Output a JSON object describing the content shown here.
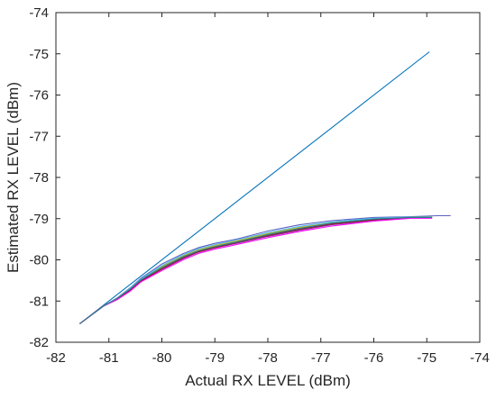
{
  "chart_data": {
    "type": "line",
    "xlabel": "Actual RX LEVEL (dBm)",
    "ylabel": "Estimated RX LEVEL (dBm)",
    "xlim": [
      -82,
      -74
    ],
    "ylim": [
      -82,
      -74
    ],
    "xticks": [
      -82,
      -81,
      -80,
      -79,
      -78,
      -77,
      -76,
      -75,
      -74
    ],
    "yticks": [
      -82,
      -81,
      -80,
      -79,
      -78,
      -77,
      -76,
      -75,
      -74
    ],
    "grid": false,
    "series": [
      {
        "color": "#0072BD",
        "x": [
          -81.55,
          -74.95
        ],
        "y": [
          -81.55,
          -74.95
        ]
      },
      {
        "color": "#5A5FC0",
        "x": [
          -81.55,
          -81.1,
          -80.85,
          -80.6,
          -80.4,
          -80.0,
          -79.6,
          -79.3,
          -79.0,
          -78.6,
          -78.0,
          -77.4,
          -76.8,
          -76.0,
          -75.3,
          -74.8,
          -74.55
        ],
        "y": [
          -81.55,
          -81.12,
          -80.93,
          -80.68,
          -80.45,
          -80.1,
          -79.85,
          -79.7,
          -79.6,
          -79.5,
          -79.3,
          -79.15,
          -79.05,
          -78.97,
          -78.95,
          -78.93,
          -78.93
        ]
      },
      {
        "color": "#D95319",
        "x": [
          -81.55,
          -81.1,
          -80.85,
          -80.6,
          -80.4,
          -80.0,
          -79.6,
          -79.3,
          -79.0,
          -78.6,
          -78.0,
          -77.4,
          -76.8,
          -76.0,
          -75.3,
          -74.9
        ],
        "y": [
          -81.55,
          -81.12,
          -80.95,
          -80.72,
          -80.5,
          -80.2,
          -79.93,
          -79.78,
          -79.68,
          -79.57,
          -79.4,
          -79.25,
          -79.12,
          -79.02,
          -78.97,
          -78.97
        ]
      },
      {
        "color": "#EDB120",
        "x": [
          -81.55,
          -81.1,
          -80.85,
          -80.6,
          -80.4,
          -80.0,
          -79.6,
          -79.3,
          -79.0,
          -78.6,
          -78.0,
          -77.4,
          -76.8,
          -76.0,
          -75.3,
          -74.9
        ],
        "y": [
          -81.55,
          -81.12,
          -80.94,
          -80.7,
          -80.48,
          -80.16,
          -79.9,
          -79.75,
          -79.65,
          -79.54,
          -79.36,
          -79.21,
          -79.09,
          -79.0,
          -78.96,
          -78.96
        ]
      },
      {
        "color": "#77AC30",
        "x": [
          -81.55,
          -81.1,
          -80.85,
          -80.6,
          -80.4,
          -80.0,
          -79.6,
          -79.3,
          -79.0,
          -78.6,
          -78.0,
          -77.4,
          -76.8,
          -76.0,
          -75.3,
          -74.9
        ],
        "y": [
          -81.55,
          -81.12,
          -80.95,
          -80.71,
          -80.49,
          -80.18,
          -79.92,
          -79.77,
          -79.67,
          -79.56,
          -79.38,
          -79.23,
          -79.11,
          -79.01,
          -78.96,
          -78.96
        ]
      },
      {
        "color": "#4DBEEE",
        "x": [
          -81.55,
          -81.1,
          -80.85,
          -80.6,
          -80.4,
          -80.0,
          -79.6,
          -79.3,
          -79.0,
          -78.6,
          -78.0,
          -77.4,
          -76.8,
          -76.0,
          -75.3,
          -74.9
        ],
        "y": [
          -81.55,
          -81.12,
          -80.94,
          -80.69,
          -80.47,
          -80.14,
          -79.88,
          -79.73,
          -79.63,
          -79.52,
          -79.34,
          -79.19,
          -79.08,
          -78.99,
          -78.96,
          -78.96
        ]
      },
      {
        "color": "#7E2F8E",
        "x": [
          -81.55,
          -81.1,
          -80.85,
          -80.6,
          -80.4,
          -80.0,
          -79.6,
          -79.3,
          -79.0,
          -78.6,
          -78.0,
          -77.4,
          -76.8,
          -76.0,
          -75.3,
          -74.9
        ],
        "y": [
          -81.55,
          -81.12,
          -80.96,
          -80.74,
          -80.52,
          -80.23,
          -79.97,
          -79.81,
          -79.71,
          -79.6,
          -79.43,
          -79.28,
          -79.15,
          -79.04,
          -78.98,
          -78.98
        ]
      },
      {
        "color": "#A2142F",
        "x": [
          -81.55,
          -81.1,
          -80.85,
          -80.6,
          -80.4,
          -80.0,
          -79.6,
          -79.3,
          -79.0,
          -78.6,
          -78.0,
          -77.4,
          -76.8,
          -76.0,
          -75.3,
          -74.9
        ],
        "y": [
          -81.55,
          -81.12,
          -80.95,
          -80.73,
          -80.51,
          -80.22,
          -79.95,
          -79.8,
          -79.7,
          -79.58,
          -79.41,
          -79.26,
          -79.13,
          -79.03,
          -78.97,
          -78.97
        ]
      },
      {
        "color": "#FF00FF",
        "x": [
          -81.55,
          -81.1,
          -80.85,
          -80.6,
          -80.4,
          -80.0,
          -79.6,
          -79.3,
          -79.0,
          -78.6,
          -78.0,
          -77.4,
          -76.8,
          -76.0,
          -75.3,
          -74.9
        ],
        "y": [
          -81.55,
          -81.12,
          -80.97,
          -80.76,
          -80.54,
          -80.26,
          -80.0,
          -79.84,
          -79.74,
          -79.63,
          -79.46,
          -79.31,
          -79.18,
          -79.06,
          -78.99,
          -78.99
        ]
      },
      {
        "color": "#2A7F8F",
        "x": [
          -81.55,
          -81.1,
          -80.85,
          -80.6,
          -80.4,
          -80.0,
          -79.6,
          -79.3,
          -79.0,
          -78.6,
          -78.0,
          -77.4,
          -76.8,
          -76.0,
          -75.3,
          -74.9
        ],
        "y": [
          -81.55,
          -81.12,
          -80.94,
          -80.71,
          -80.49,
          -80.19,
          -79.93,
          -79.78,
          -79.68,
          -79.57,
          -79.39,
          -79.24,
          -79.11,
          -79.01,
          -78.97,
          -78.97
        ]
      }
    ]
  }
}
